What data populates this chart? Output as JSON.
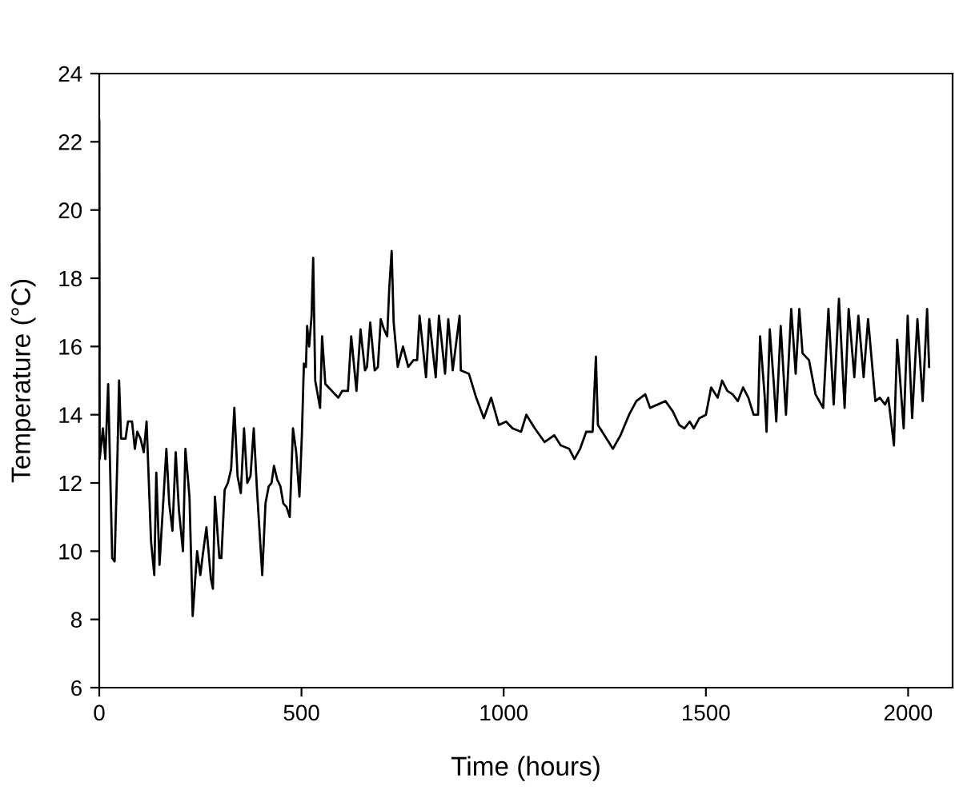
{
  "chart_data": {
    "type": "line",
    "xlabel": "Time (hours)",
    "ylabel": "Temperature (°C)",
    "xlim": [
      0,
      2110
    ],
    "ylim": [
      6,
      24
    ],
    "xticks": [
      0,
      500,
      1000,
      1500,
      2000
    ],
    "yticks": [
      6,
      8,
      10,
      12,
      14,
      16,
      18,
      20,
      22,
      24
    ],
    "grid": false,
    "legend": false,
    "marker": "none",
    "line_style": "solid",
    "series": [
      {
        "color": "#000000",
        "x": [
          0,
          1,
          9,
          15,
          22,
          32,
          38,
          45,
          49,
          54,
          65,
          71,
          81,
          88,
          94,
          102,
          110,
          117,
          128,
          136,
          141,
          149,
          157,
          166,
          173,
          181,
          189,
          197,
          207,
          213,
          223,
          231,
          242,
          250,
          256,
          265,
          276,
          281,
          286,
          297,
          302,
          310,
          318,
          326,
          334,
          342,
          350,
          358,
          366,
          374,
          382,
          390,
          403,
          411,
          419,
          426,
          432,
          440,
          448,
          455,
          463,
          471,
          479,
          487,
          495,
          501,
          506,
          511,
          514,
          519,
          525,
          529,
          534,
          546,
          551,
          559,
          575,
          591,
          601,
          615,
          623,
          636,
          646,
          657,
          662,
          670,
          681,
          689,
          696,
          704,
          712,
          717,
          723,
          728,
          738,
          751,
          764,
          777,
          786,
          792,
          808,
          816,
          832,
          840,
          855,
          863,
          874,
          891,
          894,
          914,
          932,
          951,
          969,
          988,
          1006,
          1022,
          1043,
          1056,
          1077,
          1101,
          1125,
          1141,
          1162,
          1175,
          1189,
          1204,
          1220,
          1228,
          1233,
          1249,
          1270,
          1289,
          1310,
          1328,
          1350,
          1362,
          1381,
          1400,
          1418,
          1434,
          1447,
          1460,
          1470,
          1484,
          1500,
          1513,
          1529,
          1540,
          1553,
          1566,
          1579,
          1592,
          1605,
          1618,
          1629,
          1634,
          1645,
          1650,
          1658,
          1668,
          1674,
          1685,
          1698,
          1711,
          1722,
          1731,
          1739,
          1755,
          1771,
          1790,
          1803,
          1816,
          1829,
          1843,
          1853,
          1867,
          1877,
          1890,
          1901,
          1919,
          1930,
          1943,
          1951,
          1965,
          1973,
          1989,
          1999,
          2010,
          2023,
          2036,
          2047,
          2052
        ],
        "values": [
          22.6,
          12.7,
          13.6,
          12.7,
          14.9,
          9.8,
          9.7,
          12.8,
          15.0,
          13.3,
          13.3,
          13.8,
          13.8,
          13.0,
          13.5,
          13.3,
          12.9,
          13.8,
          10.3,
          9.3,
          12.3,
          9.6,
          11.2,
          13.0,
          11.4,
          10.6,
          12.9,
          11.2,
          10.0,
          13.0,
          11.6,
          8.1,
          10.0,
          9.3,
          9.9,
          10.7,
          9.2,
          8.9,
          11.6,
          9.8,
          9.8,
          11.8,
          12.0,
          12.4,
          14.2,
          12.2,
          11.7,
          13.6,
          12.0,
          12.2,
          13.6,
          11.8,
          9.3,
          11.4,
          11.9,
          12.0,
          12.5,
          12.1,
          11.9,
          11.4,
          11.3,
          11.0,
          13.6,
          12.9,
          11.6,
          13.4,
          15.5,
          15.4,
          16.6,
          16.0,
          16.9,
          18.6,
          15.0,
          14.2,
          16.3,
          14.9,
          14.7,
          14.5,
          14.7,
          14.7,
          16.3,
          14.7,
          16.5,
          15.3,
          15.4,
          16.7,
          15.3,
          15.4,
          16.8,
          16.5,
          16.3,
          17.7,
          18.8,
          16.7,
          15.4,
          16.0,
          15.4,
          15.6,
          15.6,
          16.9,
          15.1,
          16.8,
          15.1,
          16.9,
          15.2,
          16.8,
          15.3,
          16.9,
          15.3,
          15.2,
          14.5,
          13.9,
          14.5,
          13.7,
          13.8,
          13.6,
          13.5,
          14.0,
          13.6,
          13.2,
          13.4,
          13.1,
          13.0,
          12.7,
          13.0,
          13.5,
          13.5,
          15.7,
          13.7,
          13.4,
          13.0,
          13.4,
          14.0,
          14.4,
          14.6,
          14.2,
          14.3,
          14.4,
          14.1,
          13.7,
          13.6,
          13.8,
          13.6,
          13.9,
          14.0,
          14.8,
          14.5,
          15.0,
          14.7,
          14.6,
          14.4,
          14.8,
          14.5,
          14.0,
          14.0,
          16.3,
          14.6,
          13.5,
          16.5,
          14.9,
          13.8,
          16.6,
          14.0,
          17.1,
          15.2,
          17.1,
          15.8,
          15.6,
          14.6,
          14.2,
          17.1,
          14.3,
          17.4,
          14.2,
          17.1,
          15.1,
          16.9,
          15.1,
          16.8,
          14.4,
          14.5,
          14.3,
          14.5,
          13.1,
          16.2,
          13.6,
          16.9,
          13.9,
          16.8,
          14.4,
          17.1,
          15.4
        ]
      }
    ]
  }
}
